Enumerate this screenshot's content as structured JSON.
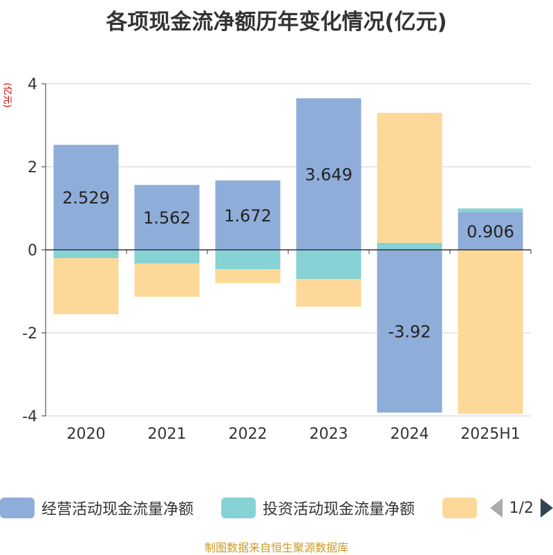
{
  "title": "各项现金流净额历年变化情况(亿元)",
  "unit_label": "(亿元)",
  "source": "制图数据来自恒生聚源数据库",
  "legend": {
    "items": [
      {
        "label": "经营活动现金流量净额",
        "color": "#8fadd9"
      },
      {
        "label": "投资活动现金流量净额",
        "color": "#86d2d5"
      },
      {
        "label": "",
        "color": "#fdd898"
      }
    ],
    "page": "1/2"
  },
  "chart_data": {
    "type": "bar",
    "stacked": true,
    "categories": [
      "2020",
      "2021",
      "2022",
      "2023",
      "2024",
      "2025H1"
    ],
    "ylim": [
      -4,
      4
    ],
    "yticks": [
      4,
      2,
      0,
      -2,
      -4
    ],
    "ytick_labels": [
      "4",
      "2",
      "0",
      "-2",
      "-4"
    ],
    "grid": true,
    "series": [
      {
        "name": "经营活动现金流量净额",
        "color": "#8fadd9",
        "values": [
          2.529,
          1.562,
          1.672,
          3.649,
          -3.92,
          0.906
        ],
        "labels": [
          "2.529",
          "1.562",
          "1.672",
          "3.649",
          "-3.92",
          "0.906"
        ]
      },
      {
        "name": "投资活动现金流量净额",
        "color": "#86d2d5",
        "values": [
          -0.2,
          -0.33,
          -0.47,
          -0.7,
          0.17,
          0.09
        ]
      },
      {
        "color": "#fdd898",
        "values": [
          -1.35,
          -0.8,
          -0.33,
          -0.67,
          3.13,
          -3.95
        ]
      }
    ]
  }
}
